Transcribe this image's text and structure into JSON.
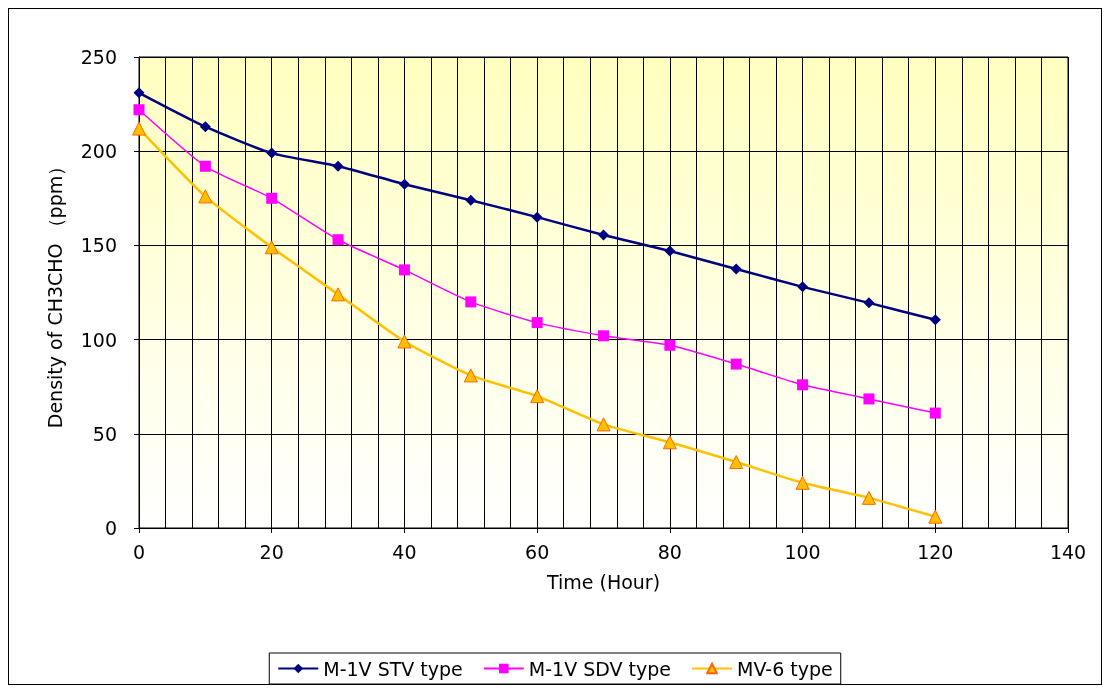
{
  "chart_data": {
    "type": "line",
    "xlabel": "Time (Hour)",
    "ylabel": "Density of CH3CHO （ppm）",
    "x": [
      0,
      10,
      20,
      30,
      40,
      50,
      60,
      70,
      80,
      90,
      100,
      110,
      120
    ],
    "series": [
      {
        "name": "M-1V STV type",
        "color": "#000080",
        "marker": "diamond",
        "values": [
          231,
          213,
          199,
          192,
          182.5,
          174,
          165,
          155.5,
          147,
          137.5,
          128,
          119.5,
          110.5
        ]
      },
      {
        "name": "M-1V SDV type",
        "color": "#ff00ff",
        "marker": "square",
        "values": [
          222,
          192,
          175,
          153,
          137,
          120,
          109,
          102,
          97,
          87,
          76,
          68.5,
          61
        ]
      },
      {
        "name": "MV-6 type",
        "color": "#ffc000",
        "marker": "triangle",
        "values": [
          212,
          176,
          149,
          124,
          99,
          81,
          70,
          55,
          45.5,
          35,
          24,
          16,
          6
        ]
      }
    ],
    "xlim": [
      0,
      140
    ],
    "xticks": [
      0,
      20,
      40,
      60,
      80,
      100,
      120,
      140
    ],
    "ylim": [
      0,
      250
    ],
    "yticks": [
      0,
      50,
      100,
      150,
      200,
      250
    ],
    "grid": true,
    "legend": "bottom"
  }
}
